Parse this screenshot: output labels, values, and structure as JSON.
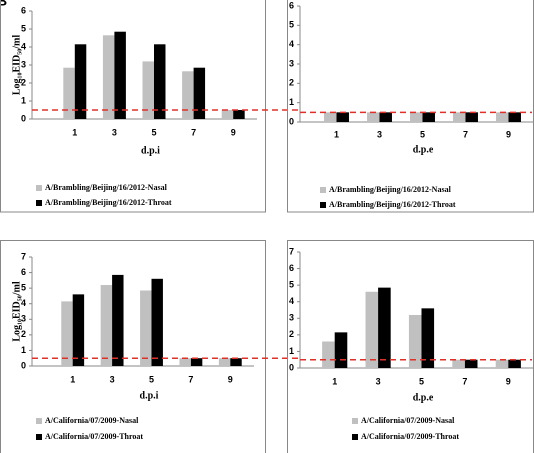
{
  "panel_label": "B",
  "chart_data": [
    {
      "type": "bar",
      "x_label": "d.p.i",
      "y_label": "Log₁₀EID₅₀/ml",
      "categories": [
        "1",
        "3",
        "5",
        "7",
        "9"
      ],
      "series": [
        {
          "name": "A/Brambling/Beijing/16/2012-Nasal",
          "color": "#c0c0c0",
          "values": [
            2.85,
            4.65,
            3.2,
            2.65,
            0.5
          ]
        },
        {
          "name": "A/Brambling/Beijing/16/2012-Throat",
          "color": "#000000",
          "values": [
            4.15,
            4.85,
            4.15,
            2.85,
            0.5
          ]
        }
      ],
      "ylim": [
        0,
        6
      ],
      "yticks": [
        0,
        1,
        2,
        3,
        4,
        5,
        6
      ],
      "threshold": 0.5,
      "threshold_color": "#e0302a"
    },
    {
      "type": "bar",
      "x_label": "d.p.e",
      "categories": [
        "1",
        "3",
        "5",
        "7",
        "9"
      ],
      "series": [
        {
          "name": "A/Brambling/Beijing/16/2012-Nasal",
          "color": "#c0c0c0",
          "values": [
            0.5,
            0.5,
            0.5,
            0.5,
            0.5
          ]
        },
        {
          "name": "A/Brambling/Beijing/16/2012-Throat",
          "color": "#000000",
          "values": [
            0.5,
            0.5,
            0.5,
            0.5,
            0.5
          ]
        }
      ],
      "ylim": [
        0,
        6
      ],
      "yticks": [
        0,
        1,
        2,
        3,
        4,
        5,
        6
      ],
      "threshold": 0.5,
      "threshold_color": "#e0302a"
    },
    {
      "type": "bar",
      "x_label": "d.p.i",
      "y_label": "Log₁₀EID₅₀/ml",
      "categories": [
        "1",
        "3",
        "5",
        "7",
        "9"
      ],
      "series": [
        {
          "name": "A/California/07/2009-Nasal",
          "color": "#c0c0c0",
          "values": [
            4.15,
            5.2,
            4.85,
            0.5,
            0.5
          ]
        },
        {
          "name": "A/California/07/2009-Throat",
          "color": "#000000",
          "values": [
            4.6,
            5.85,
            5.6,
            0.5,
            0.5
          ]
        }
      ],
      "ylim": [
        0,
        7
      ],
      "yticks": [
        0,
        1,
        2,
        3,
        4,
        5,
        6,
        7
      ],
      "threshold": 0.5,
      "threshold_color": "#e0302a"
    },
    {
      "type": "bar",
      "x_label": "d.p.e",
      "categories": [
        "1",
        "3",
        "5",
        "7",
        "9"
      ],
      "series": [
        {
          "name": "A/California/07/2009-Nasal",
          "color": "#c0c0c0",
          "values": [
            1.6,
            4.6,
            3.2,
            0.5,
            0.5
          ]
        },
        {
          "name": "A/California/07/2009-Throat",
          "color": "#000000",
          "values": [
            2.15,
            4.85,
            3.6,
            0.5,
            0.5
          ]
        }
      ],
      "ylim": [
        0,
        7
      ],
      "yticks": [
        0,
        1,
        2,
        3,
        4,
        5,
        6,
        7
      ],
      "threshold": 0.5,
      "threshold_color": "#e0302a"
    }
  ]
}
